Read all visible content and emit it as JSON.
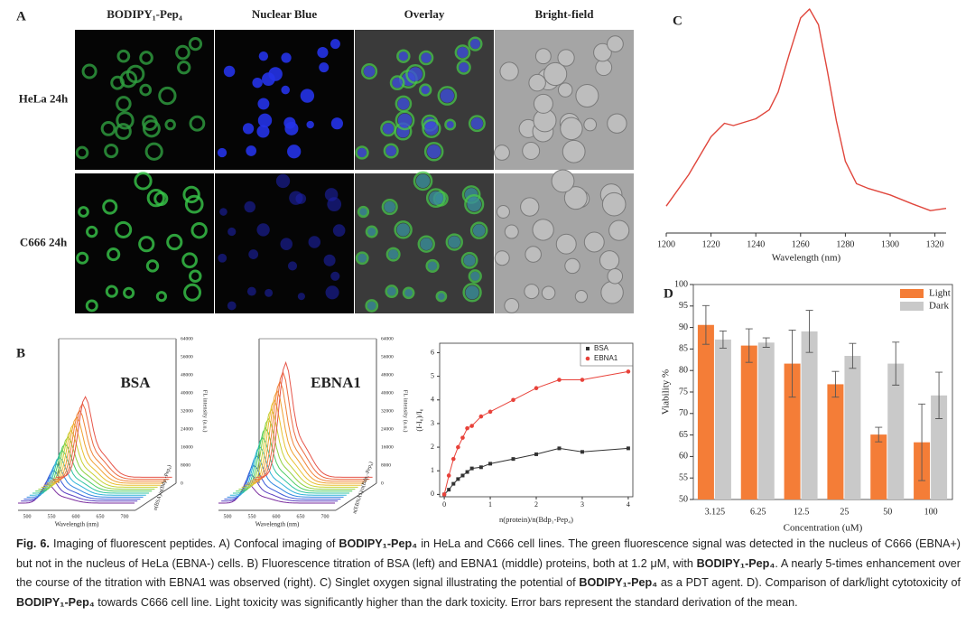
{
  "panel_a": {
    "label": "A",
    "columns": [
      "BODIPY₁-Pep₄",
      "Nuclear Blue",
      "Overlay",
      "Bright-field"
    ],
    "rows": [
      "HeLa 24h",
      "C666 24h"
    ]
  },
  "panel_b": {
    "label": "B",
    "spectra": [
      {
        "title": "BSA",
        "x_label": "Wavelength (nm)",
        "y_label": "n(BSA)/n(Bdp₁-Pep₄)",
        "z_label": "FL intensity (a.u.)",
        "xticks": [
          "500",
          "550",
          "600",
          "650",
          "700"
        ],
        "zticks": [
          "0",
          "8000",
          "16000",
          "24000",
          "32000",
          "40000",
          "48000",
          "56000",
          "64000"
        ]
      },
      {
        "title": "EBNA1",
        "x_label": "Wavelength (nm)",
        "y_label": "n(EBNA1)/n(Bdp₁-Pep₄)",
        "z_label": "FL intensity (a.u.)",
        "xticks": [
          "500",
          "550",
          "600",
          "650",
          "700"
        ],
        "zticks": [
          "0",
          "8000",
          "16000",
          "24000",
          "32000",
          "40000",
          "48000",
          "56000",
          "64000"
        ]
      }
    ]
  },
  "chart_data": [
    {
      "type": "scatter",
      "x_label": "n(protein)/n(Bdp₁-Pep₄)",
      "y_label": "(I-I₀)/I₀",
      "xlim": [
        -0.1,
        4.1
      ],
      "xticks": [
        0,
        1,
        2,
        3,
        4
      ],
      "ylim": [
        -0.1,
        6.4
      ],
      "yticks": [
        0,
        1,
        2,
        3,
        4,
        5,
        6
      ],
      "legend": "upper right",
      "series": [
        {
          "name": "BSA",
          "color": "#333333",
          "x": [
            0,
            0.1,
            0.2,
            0.3,
            0.4,
            0.5,
            0.6,
            0.8,
            1,
            1.5,
            2,
            2.5,
            3,
            4
          ],
          "values": [
            0,
            0.2,
            0.45,
            0.65,
            0.8,
            0.95,
            1.1,
            1.15,
            1.3,
            1.5,
            1.7,
            1.95,
            1.8,
            1.95
          ]
        },
        {
          "name": "EBNA1",
          "color": "#e8423a",
          "x": [
            0,
            0.1,
            0.2,
            0.3,
            0.4,
            0.5,
            0.6,
            0.8,
            1,
            1.5,
            2,
            2.5,
            3,
            4
          ],
          "values": [
            0,
            0.8,
            1.5,
            2.0,
            2.4,
            2.8,
            2.9,
            3.3,
            3.5,
            4.0,
            4.5,
            4.85,
            4.85,
            5.2
          ]
        }
      ]
    },
    {
      "type": "line",
      "label": "C",
      "x_label": "Wavelength (nm)",
      "color": "#e0463c",
      "xlim": [
        1200,
        1325
      ],
      "xticks": [
        1200,
        1220,
        1240,
        1260,
        1280,
        1300,
        1320
      ],
      "ylim": [
        0,
        1
      ],
      "x": [
        1200,
        1210,
        1220,
        1226,
        1230,
        1240,
        1246,
        1250,
        1255,
        1260,
        1264,
        1268,
        1272,
        1276,
        1280,
        1285,
        1290,
        1300,
        1310,
        1318,
        1325
      ],
      "values": [
        0.12,
        0.26,
        0.43,
        0.49,
        0.48,
        0.51,
        0.55,
        0.63,
        0.8,
        0.96,
        1.0,
        0.93,
        0.72,
        0.5,
        0.32,
        0.22,
        0.2,
        0.17,
        0.13,
        0.1,
        0.11
      ]
    },
    {
      "type": "bar",
      "label": "D",
      "x_label": "Concentration (uM)",
      "y_label": "Viability %",
      "categories": [
        "3.125",
        "6.25",
        "12.5",
        "25",
        "50",
        "100"
      ],
      "ylim": [
        50,
        100
      ],
      "yticks": [
        50,
        55,
        60,
        65,
        70,
        75,
        80,
        85,
        90,
        95,
        100
      ],
      "legend": "upper right",
      "series": [
        {
          "name": "Light",
          "color": "#f47d37",
          "values": [
            90.6,
            85.8,
            81.6,
            76.8,
            65.1,
            63.3
          ],
          "errors": [
            4.5,
            3.9,
            7.8,
            3.0,
            1.7,
            8.9
          ]
        },
        {
          "name": "Dark",
          "color": "#c9c9c9",
          "values": [
            87.2,
            86.5,
            89.1,
            83.4,
            81.6,
            74.2
          ],
          "errors": [
            2.0,
            1.1,
            4.9,
            2.9,
            5.0,
            5.4
          ]
        }
      ]
    }
  ],
  "caption": [
    {
      "text": "Fig. 6.",
      "bold": true
    },
    {
      "text": "  Imaging of fluorescent peptides. A) Confocal imaging of ",
      "bold": false
    },
    {
      "text": "BODIPY₁-Pep₄",
      "bold": true
    },
    {
      "text": " in HeLa and C666 cell lines. The green fluorescence signal was detected in the nucleus of C666 (EBNA+) but not in the nucleus of HeLa (EBNA-) cells. B) Fluorescence titration of BSA (left) and EBNA1 (middle) proteins, both at 1.2 μM, with ",
      "bold": false
    },
    {
      "text": "BODIPY₁-Pep₄",
      "bold": true
    },
    {
      "text": ". A nearly 5-times enhancement over the course of the titration with EBNA1 was observed (right). C) Singlet oxygen signal illustrating the potential of ",
      "bold": false
    },
    {
      "text": "BODIPY₁-Pep₄",
      "bold": true
    },
    {
      "text": " as a PDT agent. D). Comparison of dark/light cytotoxicity of ",
      "bold": false
    },
    {
      "text": "BODIPY₁-Pep₄",
      "bold": true
    },
    {
      "text": " towards C666 cell line. Light toxicity was significantly higher than the dark toxicity. Error bars represent the standard derivation of the mean.",
      "bold": false
    }
  ]
}
